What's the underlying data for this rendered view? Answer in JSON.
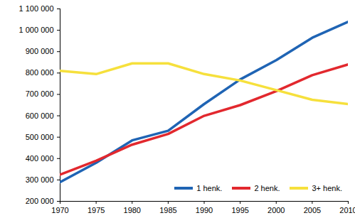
{
  "chart_data": {
    "type": "line",
    "x": [
      1970,
      1975,
      1980,
      1985,
      1990,
      1995,
      2000,
      2005,
      2010
    ],
    "series": [
      {
        "name": "1 henk.",
        "color": "#1f64b4",
        "values": [
          290000,
          380000,
          485000,
          530000,
          655000,
          770000,
          860000,
          965000,
          1040000
        ]
      },
      {
        "name": "2 henk.",
        "color": "#e2282e",
        "values": [
          325000,
          390000,
          465000,
          515000,
          600000,
          650000,
          715000,
          790000,
          840000
        ]
      },
      {
        "name": "3+ henk.",
        "color": "#f6e03c",
        "values": [
          810000,
          795000,
          845000,
          845000,
          795000,
          765000,
          720000,
          675000,
          655000
        ]
      }
    ],
    "xlim": [
      1970,
      2010
    ],
    "xticks": [
      1970,
      1975,
      1980,
      1985,
      1990,
      1995,
      2000,
      2005,
      2010
    ],
    "ylim": [
      200000,
      1100000
    ],
    "yticks": [
      {
        "value": 200000,
        "label": "200 000"
      },
      {
        "value": 300000,
        "label": "300 000"
      },
      {
        "value": 400000,
        "label": "400 000"
      },
      {
        "value": 500000,
        "label": "500 000"
      },
      {
        "value": 600000,
        "label": "600 000"
      },
      {
        "value": 700000,
        "label": "700 000"
      },
      {
        "value": 800000,
        "label": "800 000"
      },
      {
        "value": 900000,
        "label": "900 000"
      },
      {
        "value": 1000000,
        "label": "1 000 000"
      },
      {
        "value": 1100000,
        "label": "1 100 000"
      }
    ],
    "grid": false,
    "legend": "lower right"
  }
}
